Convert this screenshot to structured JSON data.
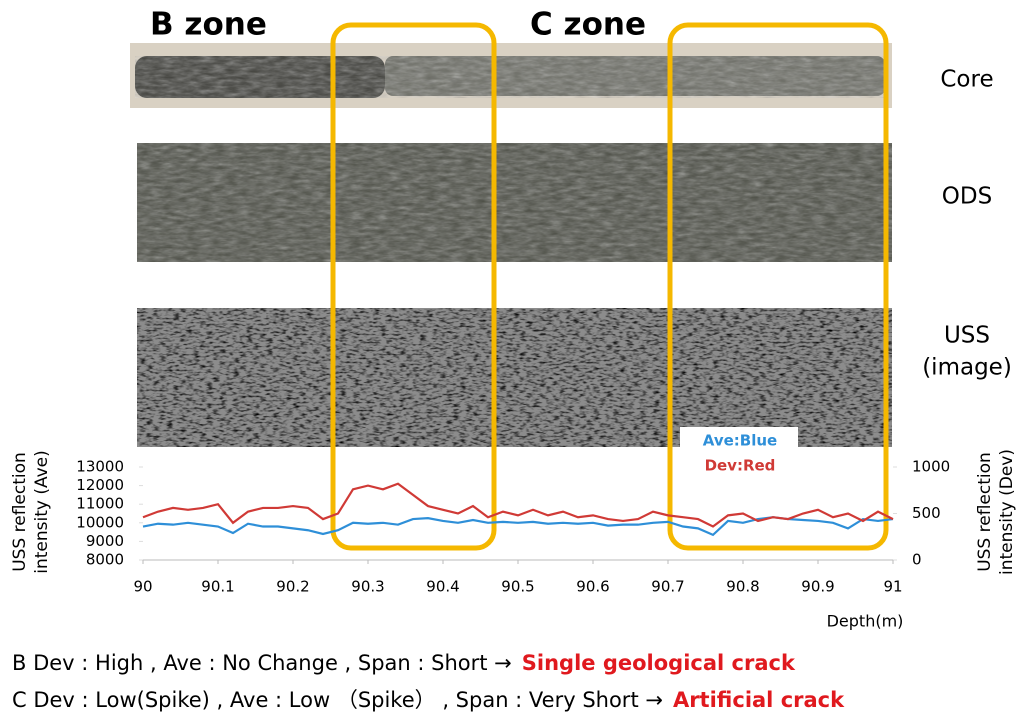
{
  "chart_data": {
    "type": "line",
    "zones": [
      "B zone",
      "C zone"
    ],
    "tracks": [
      [
        "Core"
      ],
      [
        "ODS"
      ],
      [
        "USS",
        "(image)"
      ]
    ],
    "ylabel": [
      "USS reflection",
      "intensity (Ave)"
    ],
    "y2label": [
      "USS reflection",
      "intensity (Dev)"
    ],
    "xlabel": "Depth(m)",
    "x": [
      90,
      90.02,
      90.04,
      90.06,
      90.08,
      90.1,
      90.12,
      90.14,
      90.16,
      90.18,
      90.2,
      90.22,
      90.24,
      90.26,
      90.28,
      90.3,
      90.32,
      90.34,
      90.36,
      90.38,
      90.4,
      90.42,
      90.44,
      90.46,
      90.48,
      90.5,
      90.52,
      90.54,
      90.56,
      90.58,
      90.6,
      90.62,
      90.64,
      90.66,
      90.68,
      90.7,
      90.72,
      90.74,
      90.76,
      90.78,
      90.8,
      90.82,
      90.84,
      90.86,
      90.88,
      90.9,
      90.92,
      90.94,
      90.96,
      90.98,
      91
    ],
    "series": [
      {
        "name": "Ave:Blue",
        "color": "#2e8fd8",
        "values": [
          9800,
          9950,
          9900,
          10000,
          9900,
          9800,
          9450,
          9950,
          9800,
          9800,
          9700,
          9600,
          9400,
          9600,
          10000,
          9950,
          10000,
          9900,
          10200,
          10250,
          10100,
          10000,
          10150,
          10000,
          10050,
          10000,
          10050,
          9950,
          10000,
          9950,
          10000,
          9850,
          9900,
          9900,
          10000,
          10050,
          9800,
          9700,
          9350,
          10100,
          10000,
          10200,
          10300,
          10200,
          10150,
          10100,
          10000,
          9700,
          10200,
          10100,
          10200
        ]
      },
      {
        "name": "Dev:Red",
        "color": "#d03a36",
        "axis": "y2",
        "values": [
          460,
          520,
          560,
          540,
          560,
          600,
          400,
          520,
          560,
          560,
          580,
          560,
          440,
          500,
          760,
          800,
          760,
          820,
          700,
          580,
          540,
          500,
          580,
          460,
          520,
          480,
          540,
          480,
          520,
          460,
          480,
          440,
          420,
          440,
          520,
          480,
          460,
          440,
          360,
          480,
          500,
          420,
          460,
          440,
          500,
          540,
          460,
          500,
          420,
          520,
          440
        ]
      }
    ],
    "xlim": [
      90,
      91
    ],
    "xticks": [
      90,
      90.1,
      90.2,
      90.3,
      90.4,
      90.5,
      90.6,
      90.7,
      90.8,
      90.9,
      91
    ],
    "ylim": [
      8000,
      13000
    ],
    "yticks": [
      8000,
      9000,
      10000,
      11000,
      12000,
      13000
    ],
    "y2lim": [
      0,
      1000
    ],
    "y2ticks": [
      0,
      500,
      1000
    ],
    "legend": "top-right",
    "notes": [
      {
        "text": "B  Dev : High , Ave : No Change , Span : Short →",
        "result": "Single geological crack"
      },
      {
        "text": "C  Dev : Low(Spike) , Ave : Low （Spike） , Span : Very Short →",
        "result": "Artificial crack"
      }
    ]
  }
}
